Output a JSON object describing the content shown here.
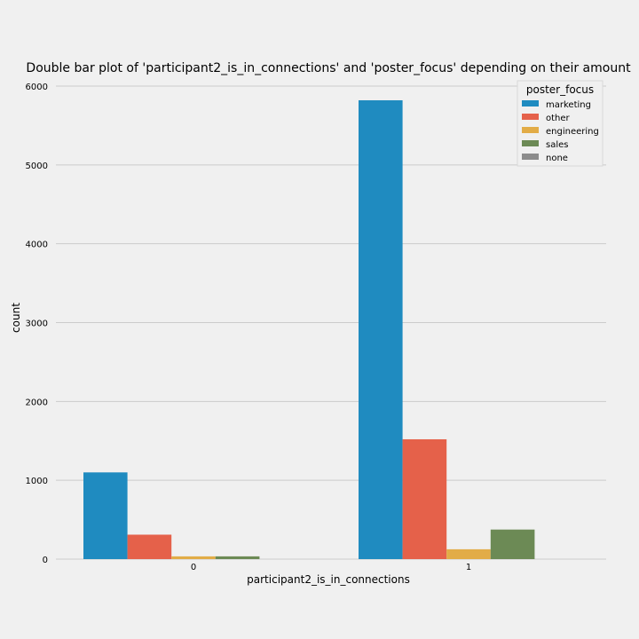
{
  "chart_data": {
    "type": "bar",
    "title": "Double bar plot of 'participant2_is_in_connections' and 'poster_focus' depending on their amount",
    "xlabel": "participant2_is_in_connections",
    "ylabel": "count",
    "categories": [
      "0",
      "1"
    ],
    "ylim": [
      0,
      6000
    ],
    "yticks": [
      "0",
      "1000",
      "2000",
      "3000",
      "4000",
      "5000",
      "6000"
    ],
    "grid": true,
    "legend_title": "poster_focus",
    "legend_position": "top-right",
    "series": [
      {
        "name": "marketing",
        "color": "#1f8bc0",
        "values": [
          1100,
          5820
        ]
      },
      {
        "name": "other",
        "color": "#e5614a",
        "values": [
          310,
          1520
        ]
      },
      {
        "name": "engineering",
        "color": "#e2ac47",
        "values": [
          35,
          125
        ]
      },
      {
        "name": "sales",
        "color": "#6c8a55",
        "values": [
          35,
          375
        ]
      },
      {
        "name": "none",
        "color": "#8c8c8c",
        "values": [
          0,
          0
        ]
      }
    ]
  }
}
